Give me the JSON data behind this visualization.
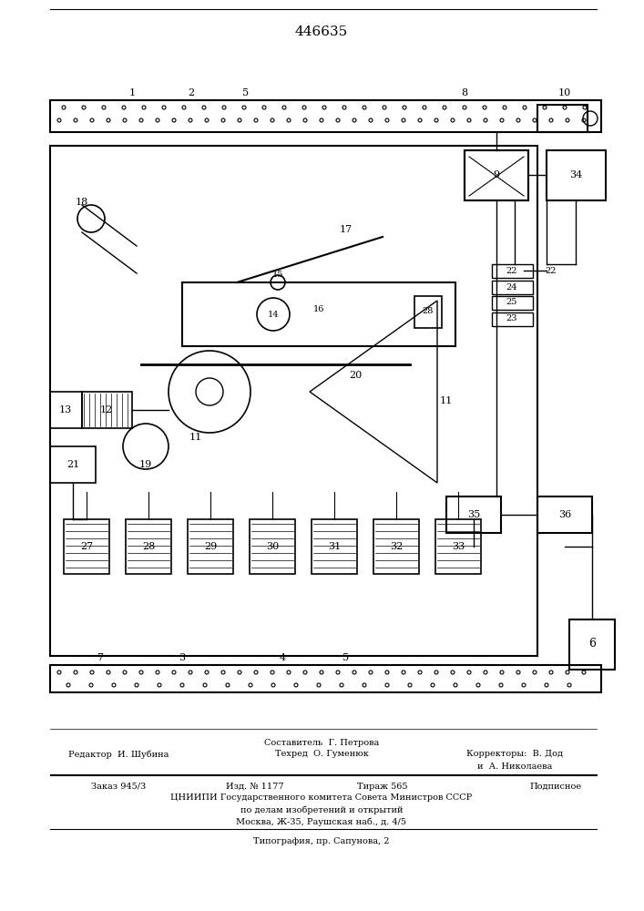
{
  "patent_number": "446635",
  "bg_color": "#ffffff",
  "line_color": "#000000",
  "fig_width": 7.07,
  "fig_height": 10.0,
  "footer": {
    "sostavitel": "Составитель  Г. Петрова",
    "redaktor": "Редактор  И. Шубина",
    "tekhred": "Техред  О. Гуменюк",
    "korrektory": "Корректоры:  В. Дод",
    "korrektory2": "и  А. Николаева",
    "zakaz": "Заказ 945/3",
    "izd": "Изд. № 1177",
    "tirazh": "Тираж 565",
    "podpisnoe": "Подписное",
    "tsniip1": "ЦНИИПИ Государственного комитета Совета Министров СССР",
    "tsniip2": "по делам изобретений и открытий",
    "tsniip3": "Москва, Ж-35, Раушская наб., д. 4/5",
    "tipografia": "Типография, пр. Сапунова, 2"
  }
}
